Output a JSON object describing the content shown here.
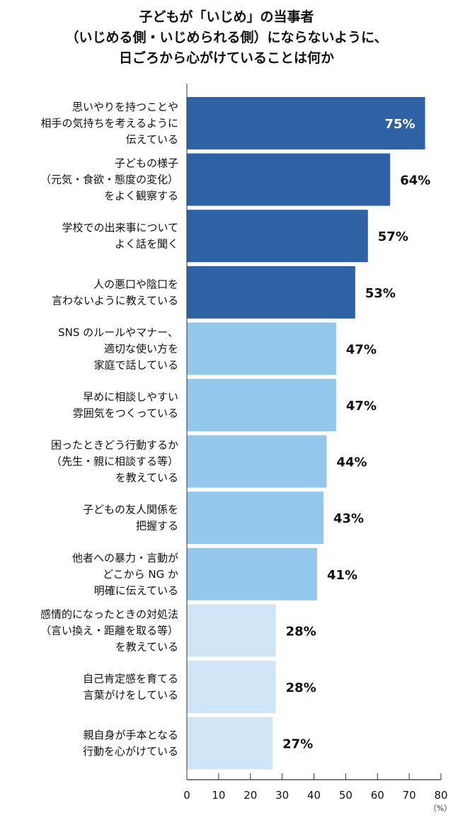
{
  "chart_data": {
    "type": "bar",
    "orientation": "horizontal",
    "title": [
      "子どもが「いじめ」の当事者",
      "（いじめる側・いじめられる側）にならないように、",
      "日ごろから心がけていることは何か"
    ],
    "categories": [
      [
        "思いやりを持つことや",
        "相手の気持ちを考えるように",
        "伝えている"
      ],
      [
        "子どもの様子",
        "（元気・食欲・態度の変化）",
        "をよく観察する"
      ],
      [
        "学校での出来事について",
        "よく話を聞く"
      ],
      [
        "人の悪口や陰口を",
        "言わないように教えている"
      ],
      [
        "SNS のルールやマナー、",
        "適切な使い方を",
        "家庭で話している"
      ],
      [
        "早めに相談しやすい",
        "雰囲気をつくっている"
      ],
      [
        "困ったときどう行動するか",
        "（先生・親に相談する等）",
        "を教えている"
      ],
      [
        "子どもの友人関係を",
        "把握する"
      ],
      [
        "他者への暴力・言動が",
        "どこから NG か",
        "明確に伝えている"
      ],
      [
        "感情的になったときの対処法",
        "（言い換え・距離を取る等）",
        "を教えている"
      ],
      [
        "自己肯定感を育てる",
        "言葉がけをしている"
      ],
      [
        "親自身が手本となる",
        "行動を心がけている"
      ]
    ],
    "values": [
      75,
      64,
      57,
      53,
      47,
      47,
      44,
      43,
      41,
      28,
      28,
      27
    ],
    "value_labels": [
      "75%",
      "64%",
      "57%",
      "53%",
      "47%",
      "47%",
      "44%",
      "43%",
      "41%",
      "28%",
      "28%",
      "27%"
    ],
    "bar_colors": [
      "#2e62a5",
      "#2e62a5",
      "#2e62a5",
      "#2e62a5",
      "#93c8ec",
      "#93c8ec",
      "#93c8ec",
      "#93c8ec",
      "#93c8ec",
      "#d0e6f7",
      "#d0e6f7",
      "#d0e6f7"
    ],
    "xlim": [
      0,
      80
    ],
    "xticks": [
      "0",
      "10",
      "20",
      "30",
      "40",
      "50",
      "60",
      "70",
      "80"
    ],
    "xunit": "（%）",
    "grid": false,
    "legend": "none"
  }
}
